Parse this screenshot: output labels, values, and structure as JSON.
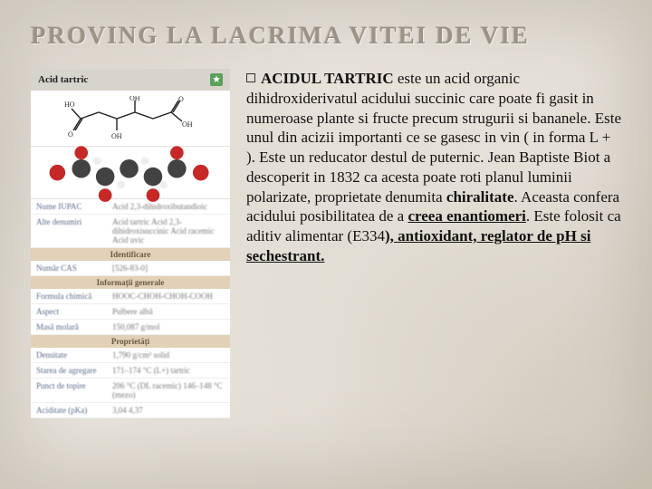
{
  "title": "PROVING   LA  LACRIMA  VITEI  DE  VIE",
  "card": {
    "header": "Acid tartric",
    "rows_top": [
      {
        "k": "Nume IUPAC",
        "v": "Acid 2,3-dihidroxibutandioic"
      },
      {
        "k": "Alte denumiri",
        "v": "Acid tartric\nAcid 2,3-dihidroxisuccinic\nAcid racemic\nAcid uvic"
      }
    ],
    "section1": "Identificare",
    "rows1": [
      {
        "k": "Număr CAS",
        "v": "[526-83-0]"
      }
    ],
    "section2": "Informații generale",
    "rows2": [
      {
        "k": "Formula chimică",
        "v": "HOOC-CHOH-CHOH-COOH"
      },
      {
        "k": "Aspect",
        "v": "Pulbere albă"
      },
      {
        "k": "Masă molară",
        "v": "150,087 g/mol"
      }
    ],
    "section3": "Proprietăți",
    "rows3": [
      {
        "k": "Densitate",
        "v": "1,790 g/cm³ solid"
      },
      {
        "k": "Starea de agregare",
        "v": "171–174 °C (L+)  tartric"
      },
      {
        "k": "Punct de topire",
        "v": "206 °C (DL racemic)  146–148 °C (mezo)"
      },
      {
        "k": "Aciditate (pKa)",
        "v": "3,04  4,37"
      }
    ]
  },
  "body": {
    "lead_bold": "ACIDUL TARTRIC",
    "p1": " este un acid organic dihidroxiderivatul acidului succinic care poate fi gasit in numeroase plante si fructe precum strugurii si bananele. Este unul din acizii importanti ce se gasesc in vin ( in forma L + ). Este un reducator destul de puternic. Jean Baptiste Biot a descoperit in 1832 ca acesta poate roti planul luminii polarizate, proprietate denumita ",
    "chir": "chiralitate",
    "p2": ". Aceasta confera acidului posibilitatea de a ",
    "crea": "creea enantiomeri",
    "p3": ". Este folosit ca aditiv alimentar (E334",
    "tail": "), antioxidant, reglator de pH si sechestrant."
  },
  "colors": {
    "title": "#9a9486",
    "section_bg": "#e2d0b8",
    "header_bg": "#d7d4cc"
  }
}
